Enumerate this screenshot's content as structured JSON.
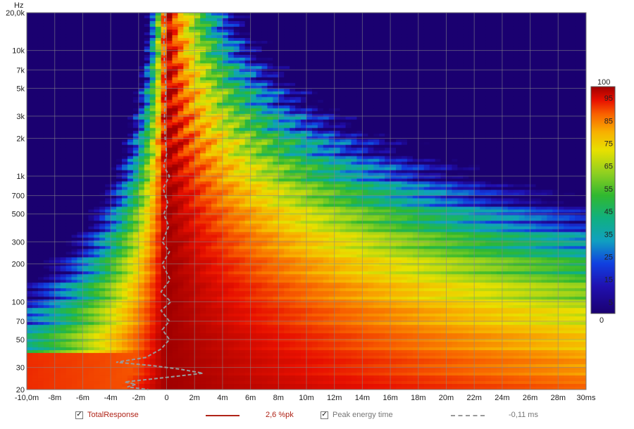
{
  "chart_data": {
    "type": "heatmap",
    "title": "",
    "xlabel": "",
    "ylabel": "",
    "y_unit_label": "Hz",
    "x_unit_label": "ms",
    "xlim": [
      -10,
      30
    ],
    "ylim": [
      20,
      20000
    ],
    "y_scale": "log",
    "x_ticks": [
      {
        "v": -10,
        "label": "-10,0m"
      },
      {
        "v": -8,
        "label": "-8m"
      },
      {
        "v": -6,
        "label": "-6m"
      },
      {
        "v": -4,
        "label": "-4m"
      },
      {
        "v": -2,
        "label": "-2m"
      },
      {
        "v": 0,
        "label": "0"
      },
      {
        "v": 2,
        "label": "2m"
      },
      {
        "v": 4,
        "label": "4m"
      },
      {
        "v": 6,
        "label": "6m"
      },
      {
        "v": 8,
        "label": "8m"
      },
      {
        "v": 10,
        "label": "10m"
      },
      {
        "v": 12,
        "label": "12m"
      },
      {
        "v": 14,
        "label": "14m"
      },
      {
        "v": 16,
        "label": "16m"
      },
      {
        "v": 18,
        "label": "18m"
      },
      {
        "v": 20,
        "label": "20m"
      },
      {
        "v": 22,
        "label": "22m"
      },
      {
        "v": 24,
        "label": "24m"
      },
      {
        "v": 26,
        "label": "26m"
      },
      {
        "v": 28,
        "label": "28m"
      },
      {
        "v": 30,
        "label": "30ms"
      }
    ],
    "y_ticks": [
      {
        "v": 20000,
        "label": "20,0k"
      },
      {
        "v": 10000,
        "label": "10k"
      },
      {
        "v": 7000,
        "label": "7k"
      },
      {
        "v": 5000,
        "label": "5k"
      },
      {
        "v": 3000,
        "label": "3k"
      },
      {
        "v": 2000,
        "label": "2k"
      },
      {
        "v": 1000,
        "label": "1k"
      },
      {
        "v": 700,
        "label": "700"
      },
      {
        "v": 500,
        "label": "500"
      },
      {
        "v": 300,
        "label": "300"
      },
      {
        "v": 200,
        "label": "200"
      },
      {
        "v": 100,
        "label": "100"
      },
      {
        "v": 70,
        "label": "70"
      },
      {
        "v": 50,
        "label": "50"
      },
      {
        "v": 30,
        "label": "30"
      },
      {
        "v": 20,
        "label": "20"
      }
    ],
    "colorbar": {
      "min": 0,
      "max": 100,
      "top_label": "100",
      "bottom_label": "0",
      "tick_labels": [
        "95",
        "85",
        "75",
        "65",
        "55",
        "45",
        "35",
        "25",
        "15",
        "5"
      ],
      "stops": [
        {
          "v": 0,
          "color": "#1a0070"
        },
        {
          "v": 12,
          "color": "#2010b0"
        },
        {
          "v": 22,
          "color": "#1040e0"
        },
        {
          "v": 32,
          "color": "#10a0c0"
        },
        {
          "v": 42,
          "color": "#10b080"
        },
        {
          "v": 52,
          "color": "#30b830"
        },
        {
          "v": 62,
          "color": "#90d020"
        },
        {
          "v": 72,
          "color": "#e8e000"
        },
        {
          "v": 80,
          "color": "#f8b000"
        },
        {
          "v": 88,
          "color": "#f86000"
        },
        {
          "v": 94,
          "color": "#e81000"
        },
        {
          "v": 100,
          "color": "#a00000"
        }
      ]
    },
    "peak_energy_time_ms": [
      {
        "f": 20000,
        "t": -0.1
      },
      {
        "f": 12000,
        "t": -0.2
      },
      {
        "f": 8000,
        "t": -0.15
      },
      {
        "f": 5000,
        "t": -0.05
      },
      {
        "f": 3000,
        "t": -0.15
      },
      {
        "f": 2000,
        "t": -0.1
      },
      {
        "f": 1500,
        "t": 0.0
      },
      {
        "f": 1200,
        "t": -0.2
      },
      {
        "f": 1000,
        "t": 0.2
      },
      {
        "f": 800,
        "t": -0.25
      },
      {
        "f": 600,
        "t": 0.1
      },
      {
        "f": 500,
        "t": -0.2
      },
      {
        "f": 400,
        "t": 0.15
      },
      {
        "f": 300,
        "t": -0.3
      },
      {
        "f": 250,
        "t": 0.2
      },
      {
        "f": 200,
        "t": -0.3
      },
      {
        "f": 150,
        "t": 0.25
      },
      {
        "f": 120,
        "t": -0.4
      },
      {
        "f": 100,
        "t": 0.3
      },
      {
        "f": 85,
        "t": -0.4
      },
      {
        "f": 70,
        "t": 0.2
      },
      {
        "f": 60,
        "t": -0.3
      },
      {
        "f": 50,
        "t": 0.2
      },
      {
        "f": 42,
        "t": -0.4
      },
      {
        "f": 36,
        "t": -1.5
      },
      {
        "f": 33,
        "t": -3.6
      },
      {
        "f": 31,
        "t": -1.0
      },
      {
        "f": 29,
        "t": 1.0
      },
      {
        "f": 27,
        "t": 2.6
      },
      {
        "f": 25,
        "t": 0.0
      },
      {
        "f": 23,
        "t": -3.0
      },
      {
        "f": 22,
        "t": -2.2
      },
      {
        "f": 21,
        "t": -2.8
      },
      {
        "f": 20,
        "t": -1.3
      }
    ],
    "series": [
      {
        "name": "TotalResponse",
        "value": "2,6 %pk"
      },
      {
        "name": "Peak energy time",
        "value": "-0,11 ms"
      }
    ]
  },
  "legend": {
    "total_label": "TotalResponse",
    "total_value": "2,6 %pk",
    "peak_label": "Peak energy time",
    "peak_value": "-0,11 ms",
    "total_color": "#b02418",
    "peak_color": "#999999",
    "check_glyph": "✓"
  }
}
